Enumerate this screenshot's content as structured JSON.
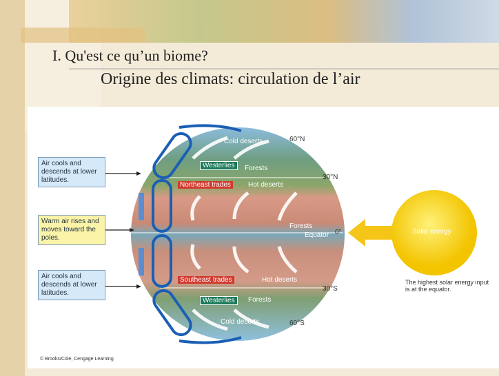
{
  "slide": {
    "title": "I. Qu'est ce qu’un biome?",
    "subtitle": "Origine des climats: circulation de l’air"
  },
  "diagram": {
    "notes": [
      "Air cools and descends at lower latitudes.",
      "Warm air rises and moves toward the poles.",
      "Air cools and descends at lower latitudes."
    ],
    "globe_labels": [
      "Cold deserts",
      "60°N",
      "Westerlies",
      "Forests",
      "30°N",
      "Northeast trades",
      "Hot deserts",
      "Forests",
      "0°",
      "Equator",
      "Southeast trades",
      "Hot deserts",
      "30°S",
      "Westerlies",
      "Forests",
      "Cold deserts",
      "60°S"
    ],
    "sun": {
      "label": "Solar energy",
      "caption": "The highest solar energy input is at the equator."
    },
    "credit": "© Brooks/Cole, Cengage Learning"
  }
}
